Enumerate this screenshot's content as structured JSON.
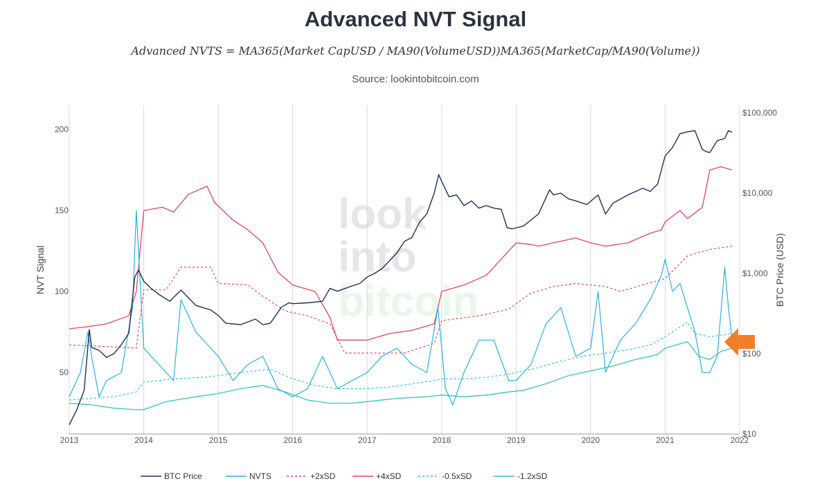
{
  "header": {
    "title": "Advanced NVT Signal",
    "formula": "Advanced NVTS = MA365(Market CapUSD / MA90(VolumeUSD))MA365(MarketCap/MA90(Volume))",
    "source": "Source: lookintobitcoin.com"
  },
  "watermark": {
    "line1": "look",
    "line2": "into",
    "line3": "bitcoin"
  },
  "colors": {
    "btc_price": "#1a2f55",
    "nvts": "#2ab0e0",
    "plus2sd": "#e0455e",
    "plus4sd": "#e0455e",
    "minus05sd": "#2fc9b2",
    "minus12sd": "#2fc9b2",
    "arrow": "#f07f2a"
  },
  "chart_data": {
    "type": "line",
    "title": "Advanced NVT Signal",
    "xlabel": "",
    "ylabel": "NVT Signal",
    "y2label": "BTC Price (USD)",
    "x_ticks": [
      "2013",
      "2014",
      "2015",
      "2016",
      "2017",
      "2018",
      "2019",
      "2020",
      "2021",
      "2022"
    ],
    "y_ticks": [
      "50",
      "100",
      "150",
      "200"
    ],
    "y2_ticks": [
      "$10",
      "$100",
      "$1,000",
      "$10,000",
      "$100,000"
    ],
    "xlim": [
      2013.0,
      2022.0
    ],
    "ylim": [
      12,
      215
    ],
    "y2lim": [
      10,
      100000
    ],
    "y2_scale": "log",
    "grid": "vertical",
    "legend_position": "bottom",
    "series": [
      {
        "name": "BTC Price",
        "axis": "right",
        "x": [
          2013.0,
          2013.1,
          2013.2,
          2013.27,
          2013.3,
          2013.4,
          2013.5,
          2013.6,
          2013.7,
          2013.8,
          2013.88,
          2013.93,
          2014.0,
          2014.1,
          2014.2,
          2014.35,
          2014.5,
          2014.7,
          2014.9,
          2015.0,
          2015.1,
          2015.3,
          2015.5,
          2015.6,
          2015.7,
          2015.85,
          2015.95,
          2016.0,
          2016.2,
          2016.4,
          2016.5,
          2016.6,
          2016.8,
          2016.9,
          2017.0,
          2017.1,
          2017.2,
          2017.4,
          2017.5,
          2017.6,
          2017.7,
          2017.8,
          2017.9,
          2017.96,
          2018.0,
          2018.1,
          2018.2,
          2018.3,
          2018.4,
          2018.5,
          2018.6,
          2018.7,
          2018.8,
          2018.88,
          2018.95,
          2019.1,
          2019.3,
          2019.45,
          2019.5,
          2019.6,
          2019.7,
          2019.8,
          2019.95,
          2020.1,
          2020.2,
          2020.3,
          2020.5,
          2020.7,
          2020.8,
          2020.9,
          2021.0,
          2021.1,
          2021.2,
          2021.3,
          2021.4,
          2021.5,
          2021.55,
          2021.6,
          2021.7,
          2021.8,
          2021.85,
          2021.9
        ],
        "y": [
          13,
          20,
          35,
          200,
          120,
          110,
          90,
          100,
          130,
          180,
          900,
          1100,
          800,
          650,
          550,
          450,
          620,
          400,
          350,
          300,
          240,
          230,
          270,
          230,
          240,
          380,
          430,
          420,
          430,
          450,
          650,
          600,
          700,
          750,
          900,
          1000,
          1150,
          1800,
          2500,
          2800,
          4300,
          5500,
          10000,
          17000,
          14000,
          9000,
          9500,
          7000,
          8000,
          6500,
          7000,
          6500,
          6300,
          3700,
          3600,
          3900,
          5500,
          11000,
          9500,
          10000,
          8500,
          8000,
          7200,
          9500,
          5500,
          7500,
          9500,
          11500,
          10500,
          13000,
          29000,
          37000,
          55000,
          58000,
          60000,
          35000,
          33000,
          32000,
          45000,
          48000,
          60000,
          57000
        ]
      },
      {
        "name": "NVTS",
        "axis": "left",
        "x": [
          2013.0,
          2013.15,
          2013.25,
          2013.3,
          2013.4,
          2013.5,
          2013.7,
          2013.85,
          2013.9,
          2014.0,
          2014.2,
          2014.4,
          2014.5,
          2014.7,
          2015.0,
          2015.2,
          2015.4,
          2015.6,
          2015.8,
          2016.0,
          2016.2,
          2016.4,
          2016.6,
          2016.8,
          2017.0,
          2017.2,
          2017.4,
          2017.6,
          2017.8,
          2017.95,
          2018.05,
          2018.15,
          2018.3,
          2018.5,
          2018.7,
          2018.9,
          2019.0,
          2019.2,
          2019.4,
          2019.6,
          2019.8,
          2020.0,
          2020.1,
          2020.2,
          2020.4,
          2020.6,
          2020.8,
          2020.95,
          2021.0,
          2021.1,
          2021.2,
          2021.4,
          2021.5,
          2021.6,
          2021.7,
          2021.8,
          2021.85,
          2021.9
        ],
        "y": [
          35,
          50,
          75,
          60,
          35,
          45,
          50,
          90,
          150,
          65,
          55,
          45,
          95,
          75,
          60,
          45,
          55,
          60,
          40,
          35,
          40,
          60,
          40,
          45,
          50,
          60,
          65,
          55,
          50,
          90,
          40,
          30,
          50,
          70,
          70,
          45,
          45,
          55,
          80,
          90,
          60,
          65,
          100,
          50,
          70,
          80,
          95,
          110,
          120,
          100,
          105,
          75,
          50,
          50,
          60,
          115,
          90,
          70
        ]
      },
      {
        "name": "+2xSD",
        "axis": "left",
        "x": [
          2013.0,
          2013.5,
          2013.9,
          2014.0,
          2014.3,
          2014.5,
          2014.9,
          2015.0,
          2015.4,
          2015.6,
          2015.9,
          2016.2,
          2016.5,
          2016.7,
          2017.0,
          2017.5,
          2017.9,
          2018.0,
          2018.5,
          2018.9,
          2019.2,
          2019.5,
          2019.8,
          2020.0,
          2020.2,
          2020.4,
          2020.7,
          2021.0,
          2021.3,
          2021.6,
          2021.9
        ],
        "y": [
          67,
          66,
          65,
          101,
          101,
          115,
          115,
          105,
          104,
          97,
          88,
          85,
          80,
          62,
          62,
          62,
          68,
          82,
          85,
          89,
          99,
          103,
          105,
          104,
          103,
          100,
          104,
          108,
          122,
          126,
          128
        ]
      },
      {
        "name": "+4xSD",
        "axis": "left",
        "x": [
          2013.0,
          2013.2,
          2013.5,
          2013.8,
          2013.9,
          2014.0,
          2014.25,
          2014.4,
          2014.6,
          2014.85,
          2014.95,
          2015.2,
          2015.4,
          2015.6,
          2015.8,
          2016.0,
          2016.3,
          2016.5,
          2016.6,
          2016.8,
          2017.0,
          2017.3,
          2017.6,
          2017.9,
          2018.0,
          2018.3,
          2018.6,
          2018.9,
          2019.0,
          2019.2,
          2019.3,
          2019.5,
          2019.8,
          2020.0,
          2020.2,
          2020.5,
          2020.8,
          2020.95,
          2021.0,
          2021.2,
          2021.3,
          2021.5,
          2021.6,
          2021.75,
          2021.9
        ],
        "y": [
          77,
          78,
          80,
          85,
          100,
          150,
          152,
          149,
          160,
          165,
          155,
          144,
          138,
          130,
          112,
          104,
          100,
          84,
          70,
          70,
          70,
          74,
          76,
          80,
          100,
          104,
          110,
          125,
          130,
          129,
          128,
          130,
          133,
          130,
          128,
          130,
          136,
          138,
          143,
          150,
          145,
          152,
          175,
          177,
          175
        ]
      },
      {
        "name": "-0.5xSD",
        "axis": "left",
        "x": [
          2013.0,
          2013.3,
          2013.6,
          2013.9,
          2014.0,
          2014.4,
          2014.8,
          2015.0,
          2015.3,
          2015.7,
          2016.0,
          2016.3,
          2016.6,
          2017.0,
          2017.3,
          2017.6,
          2017.9,
          2018.0,
          2018.3,
          2018.6,
          2018.9,
          2019.0,
          2019.3,
          2019.6,
          2019.9,
          2020.2,
          2020.5,
          2020.8,
          2021.0,
          2021.3,
          2021.4,
          2021.6,
          2021.75,
          2021.9
        ],
        "y": [
          33,
          34,
          35,
          38,
          44,
          46,
          47,
          48,
          50,
          52,
          46,
          42,
          40,
          40,
          41,
          43,
          45,
          46,
          46,
          47,
          49,
          50,
          53,
          57,
          60,
          62,
          64,
          67,
          72,
          81,
          74,
          72,
          73,
          74
        ]
      },
      {
        "name": "-1.2xSD",
        "axis": "left",
        "x": [
          2013.0,
          2013.3,
          2013.6,
          2013.9,
          2014.0,
          2014.3,
          2014.7,
          2015.0,
          2015.3,
          2015.6,
          2015.9,
          2016.2,
          2016.5,
          2016.8,
          2017.0,
          2017.4,
          2017.8,
          2018.0,
          2018.3,
          2018.6,
          2018.9,
          2019.1,
          2019.4,
          2019.7,
          2020.0,
          2020.3,
          2020.6,
          2020.9,
          2021.0,
          2021.3,
          2021.45,
          2021.6,
          2021.75,
          2021.9
        ],
        "y": [
          31,
          30,
          28,
          27,
          27,
          32,
          35,
          37,
          40,
          42,
          38,
          33,
          31,
          31,
          32,
          34,
          35,
          36,
          35,
          36,
          38,
          39,
          43,
          48,
          51,
          54,
          58,
          61,
          65,
          69,
          60,
          58,
          63,
          65
        ]
      }
    ]
  },
  "legend": {
    "items": [
      {
        "label": "BTC Price",
        "color": "#1a2f55",
        "dash": ""
      },
      {
        "label": "NVTS",
        "color": "#2ab0e0",
        "dash": ""
      },
      {
        "label": "+2xSD",
        "color": "#e0455e",
        "dash": "3,3"
      },
      {
        "label": "+4xSD",
        "color": "#e0455e",
        "dash": ""
      },
      {
        "label": "-0.5xSD",
        "color": "#2fc9b2",
        "dash": "3,3"
      },
      {
        "label": "-1.2xSD",
        "color": "#2fc9b2",
        "dash": ""
      }
    ]
  }
}
